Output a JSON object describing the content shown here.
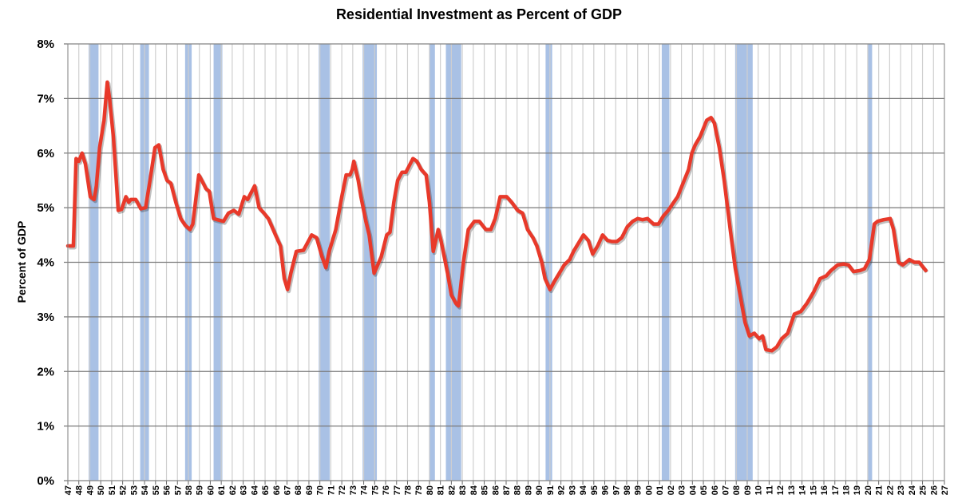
{
  "chart_data": {
    "type": "line",
    "title": "Residential Investment as Percent of GDP",
    "xlabel": "",
    "ylabel": "Percent of GDP",
    "xlim": [
      1947,
      2027
    ],
    "ylim": [
      0,
      8
    ],
    "y_ticks": [
      "0%",
      "1%",
      "2%",
      "3%",
      "4%",
      "5%",
      "6%",
      "7%",
      "8%"
    ],
    "x_ticks": [
      "47",
      "48",
      "49",
      "50",
      "51",
      "52",
      "53",
      "54",
      "55",
      "56",
      "57",
      "58",
      "59",
      "60",
      "61",
      "62",
      "63",
      "64",
      "65",
      "66",
      "67",
      "68",
      "69",
      "70",
      "71",
      "72",
      "73",
      "74",
      "75",
      "76",
      "77",
      "78",
      "79",
      "80",
      "81",
      "82",
      "83",
      "84",
      "85",
      "86",
      "87",
      "88",
      "89",
      "90",
      "91",
      "92",
      "93",
      "94",
      "95",
      "96",
      "97",
      "98",
      "99",
      "00",
      "01",
      "02",
      "03",
      "04",
      "05",
      "06",
      "07",
      "08",
      "09",
      "10",
      "11",
      "12",
      "13",
      "14",
      "15",
      "16",
      "17",
      "18",
      "19",
      "20",
      "21",
      "22",
      "23",
      "24",
      "25",
      "26",
      "27"
    ],
    "grid": true,
    "line_color": "#e8392a",
    "recession_color": "#a9c1e5",
    "recessions": [
      [
        1948.9,
        1949.8
      ],
      [
        1953.6,
        1954.4
      ],
      [
        1957.7,
        1958.3
      ],
      [
        1960.3,
        1961.1
      ],
      [
        1969.9,
        1970.9
      ],
      [
        1973.9,
        1975.2
      ],
      [
        1980.0,
        1980.5
      ],
      [
        1981.5,
        1982.9
      ],
      [
        1990.6,
        1991.2
      ],
      [
        2001.2,
        2001.9
      ],
      [
        2007.9,
        2009.5
      ],
      [
        2020.0,
        2020.4
      ]
    ],
    "series": [
      {
        "x": [
          1947.0,
          1947.5,
          1947.75,
          1948.0,
          1948.3,
          1948.6,
          1949.05,
          1949.4,
          1949.6,
          1949.9,
          1950.3,
          1950.6,
          1950.8,
          1951.15,
          1951.6,
          1951.9,
          1952.3,
          1952.55,
          1952.75,
          1953.2,
          1953.65,
          1954.1,
          1954.5,
          1954.95,
          1955.3,
          1955.7,
          1956.05,
          1956.4,
          1956.85,
          1957.3,
          1957.7,
          1958.15,
          1958.4,
          1958.95,
          1959.35,
          1959.6,
          1959.9,
          1960.3,
          1960.65,
          1961.2,
          1961.65,
          1962.15,
          1962.6,
          1963.1,
          1963.4,
          1964.05,
          1964.45,
          1964.9,
          1965.3,
          1965.95,
          1966.4,
          1966.75,
          1967.05,
          1967.35,
          1967.85,
          1968.5,
          1969.25,
          1969.7,
          1970.2,
          1970.55,
          1970.85,
          1971.15,
          1971.45,
          1972.0,
          1972.4,
          1972.75,
          1972.95,
          1973.1,
          1973.5,
          1973.75,
          1974.2,
          1974.5,
          1974.95,
          1975.6,
          1976.1,
          1976.4,
          1976.75,
          1977.1,
          1977.5,
          1977.85,
          1978.5,
          1978.85,
          1979.25,
          1979.7,
          1980.0,
          1980.35,
          1980.8,
          1981.05,
          1981.35,
          1981.65,
          1982.0,
          1982.4,
          1982.65,
          1983.1,
          1983.55,
          1984.1,
          1984.55,
          1985.15,
          1985.6,
          1986.0,
          1986.45,
          1987.05,
          1987.5,
          1988.05,
          1988.5,
          1988.95,
          1989.45,
          1989.8,
          1990.25,
          1990.55,
          1991.0,
          1991.4,
          1991.85,
          1992.3,
          1992.8,
          1993.15,
          1993.6,
          1994.05,
          1994.5,
          1994.9,
          1995.35,
          1995.8,
          1996.25,
          1996.65,
          1997.1,
          1997.55,
          1998.05,
          1998.55,
          1999.0,
          1999.45,
          1999.9,
          2000.45,
          2000.9,
          2001.35,
          2001.8,
          2002.3,
          2002.65,
          2003.25,
          2003.65,
          2003.95,
          2004.25,
          2004.7,
          2005.3,
          2005.7,
          2006.0,
          2006.45,
          2006.9,
          2007.45,
          2007.9,
          2008.35,
          2008.8,
          2009.2,
          2009.65,
          2010.1,
          2010.4,
          2010.7,
          2011.25,
          2011.7,
          2012.15,
          2012.7,
          2013.3,
          2013.9,
          2014.45,
          2015.05,
          2015.65,
          2016.2,
          2016.65,
          2017.25,
          2017.8,
          2018.25,
          2018.7,
          2019.3,
          2019.7,
          2020.15,
          2020.6,
          2020.9,
          2021.45,
          2022.05,
          2022.35,
          2022.8,
          2023.2,
          2023.8,
          2024.25,
          2024.7,
          2025.3
        ],
        "y": [
          4.3,
          4.3,
          5.9,
          5.85,
          6.0,
          5.8,
          5.2,
          5.15,
          5.4,
          6.1,
          6.6,
          7.3,
          7.0,
          6.3,
          4.95,
          4.97,
          5.2,
          5.1,
          5.15,
          5.15,
          4.98,
          5.0,
          5.5,
          6.1,
          6.15,
          5.7,
          5.5,
          5.45,
          5.1,
          4.8,
          4.68,
          4.6,
          4.7,
          5.6,
          5.45,
          5.35,
          5.3,
          4.8,
          4.78,
          4.75,
          4.9,
          4.95,
          4.88,
          5.2,
          5.15,
          5.4,
          5.0,
          4.9,
          4.8,
          4.5,
          4.3,
          3.7,
          3.5,
          3.8,
          4.2,
          4.22,
          4.5,
          4.45,
          4.1,
          3.9,
          4.2,
          4.4,
          4.6,
          5.2,
          5.6,
          5.6,
          5.7,
          5.85,
          5.5,
          5.2,
          4.75,
          4.5,
          3.8,
          4.1,
          4.5,
          4.55,
          5.1,
          5.5,
          5.65,
          5.65,
          5.9,
          5.85,
          5.7,
          5.6,
          5.1,
          4.2,
          4.6,
          4.4,
          4.1,
          3.8,
          3.4,
          3.25,
          3.2,
          4.0,
          4.6,
          4.75,
          4.75,
          4.6,
          4.6,
          4.8,
          5.2,
          5.2,
          5.1,
          4.95,
          4.9,
          4.6,
          4.45,
          4.3,
          4.0,
          3.7,
          3.5,
          3.65,
          3.8,
          3.95,
          4.05,
          4.2,
          4.35,
          4.5,
          4.4,
          4.15,
          4.3,
          4.5,
          4.4,
          4.38,
          4.38,
          4.45,
          4.65,
          4.75,
          4.8,
          4.78,
          4.8,
          4.7,
          4.7,
          4.85,
          4.95,
          5.1,
          5.2,
          5.5,
          5.7,
          6.0,
          6.15,
          6.3,
          6.6,
          6.65,
          6.55,
          6.1,
          5.5,
          4.6,
          3.9,
          3.4,
          2.9,
          2.65,
          2.7,
          2.6,
          2.65,
          2.4,
          2.38,
          2.45,
          2.6,
          2.7,
          3.05,
          3.1,
          3.25,
          3.45,
          3.7,
          3.75,
          3.85,
          3.95,
          3.97,
          3.95,
          3.83,
          3.85,
          3.88,
          4.05,
          4.7,
          4.75,
          4.78,
          4.8,
          4.6,
          4.0,
          3.95,
          4.05,
          4.0,
          4.0,
          3.85
        ]
      }
    ]
  }
}
